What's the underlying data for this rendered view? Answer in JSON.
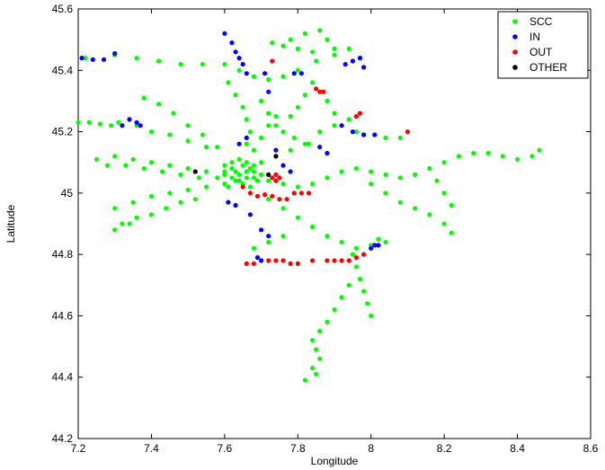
{
  "chart_data": {
    "type": "scatter",
    "xlabel": "Longitude",
    "ylabel": "Latitude",
    "xlim": [
      7.2,
      8.6
    ],
    "ylim": [
      44.2,
      45.6
    ],
    "xticks": [
      "7.2",
      "7.4",
      "7.6",
      "7.8",
      "8",
      "8.2",
      "8.4",
      "8.6"
    ],
    "yticks": [
      "44.2",
      "44.4",
      "44.6",
      "44.8",
      "45",
      "45.2",
      "45.4",
      "45.6"
    ],
    "grid": false,
    "legend_position": "top-right",
    "series": [
      {
        "name": "SCC",
        "color": "#00ff00",
        "points": [
          [
            7.2,
            45.23
          ],
          [
            7.23,
            45.23
          ],
          [
            7.26,
            45.225
          ],
          [
            7.29,
            45.22
          ],
          [
            7.31,
            45.23
          ],
          [
            7.22,
            45.44
          ],
          [
            7.3,
            45.45
          ],
          [
            7.36,
            45.44
          ],
          [
            7.42,
            45.43
          ],
          [
            7.48,
            45.42
          ],
          [
            7.54,
            45.42
          ],
          [
            7.6,
            45.42
          ],
          [
            7.64,
            45.4
          ],
          [
            7.68,
            45.38
          ],
          [
            7.72,
            45.37
          ],
          [
            7.76,
            45.38
          ],
          [
            7.8,
            45.4
          ],
          [
            7.85,
            45.43
          ],
          [
            7.9,
            45.45
          ],
          [
            7.94,
            45.47
          ],
          [
            7.97,
            45.44
          ],
          [
            7.73,
            45.49
          ],
          [
            7.78,
            45.5
          ],
          [
            7.82,
            45.52
          ],
          [
            7.86,
            45.53
          ],
          [
            7.88,
            45.5
          ],
          [
            7.9,
            45.47
          ],
          [
            7.76,
            45.48
          ],
          [
            7.8,
            45.47
          ],
          [
            7.84,
            45.46
          ],
          [
            7.61,
            45.36
          ],
          [
            7.63,
            45.32
          ],
          [
            7.65,
            45.28
          ],
          [
            7.66,
            45.24
          ],
          [
            7.67,
            45.2
          ],
          [
            7.66,
            45.16
          ],
          [
            7.7,
            45.3
          ],
          [
            7.72,
            45.26
          ],
          [
            7.74,
            45.22
          ],
          [
            7.76,
            45.2
          ],
          [
            7.79,
            45.18
          ],
          [
            7.83,
            45.16
          ],
          [
            7.86,
            45.2
          ],
          [
            7.9,
            45.22
          ],
          [
            7.94,
            45.24
          ],
          [
            7.96,
            45.2
          ],
          [
            7.98,
            45.19
          ],
          [
            8.04,
            45.18
          ],
          [
            8.08,
            45.18
          ],
          [
            7.82,
            45.32
          ],
          [
            7.8,
            45.28
          ],
          [
            7.78,
            45.25
          ],
          [
            7.84,
            45.36
          ],
          [
            7.88,
            45.3
          ],
          [
            7.9,
            45.26
          ],
          [
            7.38,
            45.31
          ],
          [
            7.42,
            45.29
          ],
          [
            7.46,
            45.26
          ],
          [
            7.5,
            45.22
          ],
          [
            7.54,
            45.19
          ],
          [
            7.58,
            45.15
          ],
          [
            7.36,
            45.22
          ],
          [
            7.4,
            45.2
          ],
          [
            7.45,
            45.19
          ],
          [
            7.5,
            45.17
          ],
          [
            7.55,
            45.15
          ],
          [
            7.25,
            45.11
          ],
          [
            7.3,
            45.12
          ],
          [
            7.35,
            45.11
          ],
          [
            7.4,
            45.1
          ],
          [
            7.45,
            45.09
          ],
          [
            7.5,
            45.08
          ],
          [
            7.55,
            45.07
          ],
          [
            7.6,
            45.06
          ],
          [
            7.28,
            45.09
          ],
          [
            7.33,
            45.09
          ],
          [
            7.38,
            45.08
          ],
          [
            7.43,
            45.07
          ],
          [
            7.48,
            45.06
          ],
          [
            7.53,
            45.05
          ],
          [
            7.3,
            44.95
          ],
          [
            7.35,
            44.97
          ],
          [
            7.4,
            44.99
          ],
          [
            7.45,
            45.0
          ],
          [
            7.5,
            45.01
          ],
          [
            7.55,
            45.02
          ],
          [
            7.6,
            45.03
          ],
          [
            7.32,
            44.9
          ],
          [
            7.36,
            44.92
          ],
          [
            7.4,
            44.93
          ],
          [
            7.44,
            44.95
          ],
          [
            7.48,
            44.97
          ],
          [
            7.52,
            44.98
          ],
          [
            7.3,
            44.88
          ],
          [
            7.34,
            44.9
          ],
          [
            7.58,
            45.05
          ],
          [
            7.6,
            45.07
          ],
          [
            7.62,
            45.08
          ],
          [
            7.64,
            45.06
          ],
          [
            7.66,
            45.05
          ],
          [
            7.68,
            45.07
          ],
          [
            7.61,
            45.02
          ],
          [
            7.63,
            45.04
          ],
          [
            7.65,
            45.03
          ],
          [
            7.67,
            45.02
          ],
          [
            7.69,
            45.04
          ],
          [
            7.62,
            45.1
          ],
          [
            7.64,
            45.11
          ],
          [
            7.66,
            45.1
          ],
          [
            7.68,
            45.09
          ],
          [
            7.7,
            45.06
          ],
          [
            7.6,
            45.09
          ],
          [
            7.63,
            45.07
          ],
          [
            7.65,
            45.09
          ],
          [
            7.67,
            45.08
          ],
          [
            7.64,
            45.04
          ],
          [
            7.66,
            45.07
          ],
          [
            7.62,
            45.05
          ],
          [
            7.68,
            45.05
          ],
          [
            7.7,
            45.1
          ],
          [
            7.74,
            45.12
          ],
          [
            7.78,
            45.14
          ],
          [
            7.82,
            45.16
          ],
          [
            7.72,
            45.04
          ],
          [
            7.76,
            45.03
          ],
          [
            7.8,
            45.02
          ],
          [
            7.84,
            45.03
          ],
          [
            7.88,
            45.05
          ],
          [
            7.92,
            45.07
          ],
          [
            7.96,
            45.08
          ],
          [
            8.0,
            45.07
          ],
          [
            8.04,
            45.06
          ],
          [
            8.08,
            45.05
          ],
          [
            8.12,
            45.06
          ],
          [
            8.16,
            45.08
          ],
          [
            8.2,
            45.1
          ],
          [
            8.24,
            45.12
          ],
          [
            8.28,
            45.13
          ],
          [
            8.32,
            45.13
          ],
          [
            8.36,
            45.12
          ],
          [
            8.4,
            45.11
          ],
          [
            8.44,
            45.12
          ],
          [
            8.46,
            45.14
          ],
          [
            8.0,
            45.03
          ],
          [
            8.04,
            45.0
          ],
          [
            8.08,
            44.97
          ],
          [
            8.12,
            44.95
          ],
          [
            8.16,
            44.93
          ],
          [
            8.2,
            44.9
          ],
          [
            8.22,
            44.87
          ],
          [
            8.18,
            45.04
          ],
          [
            8.2,
            45.0
          ],
          [
            8.22,
            44.96
          ],
          [
            7.72,
            44.98
          ],
          [
            7.76,
            44.95
          ],
          [
            7.8,
            44.92
          ],
          [
            7.84,
            44.89
          ],
          [
            7.88,
            44.86
          ],
          [
            7.92,
            44.84
          ],
          [
            7.96,
            44.82
          ],
          [
            8.0,
            44.83
          ],
          [
            8.02,
            44.85
          ],
          [
            8.04,
            44.84
          ],
          [
            7.95,
            44.8
          ],
          [
            7.96,
            44.76
          ],
          [
            7.97,
            44.72
          ],
          [
            7.98,
            44.68
          ],
          [
            7.99,
            44.64
          ],
          [
            8.0,
            44.6
          ],
          [
            7.94,
            44.7
          ],
          [
            7.92,
            44.66
          ],
          [
            7.9,
            44.62
          ],
          [
            7.88,
            44.58
          ],
          [
            7.86,
            44.55
          ],
          [
            7.84,
            44.52
          ],
          [
            7.85,
            44.49
          ],
          [
            7.86,
            44.46
          ],
          [
            7.84,
            44.43
          ],
          [
            7.85,
            44.41
          ],
          [
            7.82,
            44.39
          ],
          [
            7.68,
            44.82
          ],
          [
            7.72,
            44.84
          ],
          [
            7.76,
            44.86
          ],
          [
            7.74,
            45.25
          ],
          [
            7.72,
            45.22
          ],
          [
            7.7,
            45.18
          ],
          [
            7.68,
            45.14
          ]
        ]
      },
      {
        "name": "IN",
        "color": "#0000ff",
        "points": [
          [
            7.21,
            45.44
          ],
          [
            7.24,
            45.435
          ],
          [
            7.27,
            45.435
          ],
          [
            7.3,
            45.455
          ],
          [
            7.6,
            45.52
          ],
          [
            7.62,
            45.49
          ],
          [
            7.63,
            45.46
          ],
          [
            7.64,
            45.44
          ],
          [
            7.65,
            45.42
          ],
          [
            7.66,
            45.39
          ],
          [
            7.79,
            45.39
          ],
          [
            7.81,
            45.39
          ],
          [
            7.93,
            45.42
          ],
          [
            7.95,
            45.43
          ],
          [
            7.97,
            45.44
          ],
          [
            7.98,
            45.41
          ],
          [
            7.32,
            45.22
          ],
          [
            7.34,
            45.24
          ],
          [
            7.36,
            45.23
          ],
          [
            7.37,
            45.22
          ],
          [
            7.71,
            45.39
          ],
          [
            7.72,
            45.33
          ],
          [
            7.86,
            45.15
          ],
          [
            7.88,
            45.13
          ],
          [
            7.92,
            45.22
          ],
          [
            7.95,
            45.2
          ],
          [
            7.98,
            45.19
          ],
          [
            8.01,
            45.19
          ],
          [
            7.74,
            45.14
          ],
          [
            7.76,
            45.09
          ],
          [
            7.78,
            45.07
          ],
          [
            7.64,
            45.16
          ],
          [
            7.66,
            45.18
          ],
          [
            7.67,
            44.93
          ],
          [
            7.7,
            44.88
          ],
          [
            7.72,
            44.86
          ],
          [
            7.69,
            44.79
          ],
          [
            7.7,
            44.78
          ],
          [
            7.61,
            44.97
          ],
          [
            7.63,
            44.96
          ],
          [
            8.0,
            44.82
          ],
          [
            8.01,
            44.83
          ],
          [
            8.02,
            44.83
          ]
        ]
      },
      {
        "name": "OUT",
        "color": "#ff0000",
        "points": [
          [
            7.73,
            45.43
          ],
          [
            7.85,
            45.34
          ],
          [
            7.86,
            45.33
          ],
          [
            7.87,
            45.33
          ],
          [
            7.96,
            45.25
          ],
          [
            7.97,
            45.26
          ],
          [
            8.1,
            45.2
          ],
          [
            7.74,
            45.06
          ],
          [
            7.75,
            45.05
          ],
          [
            7.73,
            45.05
          ],
          [
            7.74,
            45.04
          ],
          [
            7.65,
            45.02
          ],
          [
            7.67,
            45.0
          ],
          [
            7.69,
            44.99
          ],
          [
            7.71,
            44.995
          ],
          [
            7.73,
            44.99
          ],
          [
            7.75,
            44.98
          ],
          [
            7.77,
            44.98
          ],
          [
            7.79,
            45.0
          ],
          [
            7.81,
            45.0
          ],
          [
            7.83,
            45.0
          ],
          [
            7.66,
            44.77
          ],
          [
            7.68,
            44.77
          ],
          [
            7.72,
            44.78
          ],
          [
            7.74,
            44.78
          ],
          [
            7.76,
            44.78
          ],
          [
            7.78,
            44.77
          ],
          [
            7.8,
            44.77
          ],
          [
            7.84,
            44.78
          ],
          [
            7.88,
            44.78
          ],
          [
            7.9,
            44.78
          ],
          [
            7.92,
            44.78
          ],
          [
            7.94,
            44.78
          ],
          [
            7.96,
            44.79
          ],
          [
            7.98,
            44.8
          ]
        ]
      },
      {
        "name": "OTHER",
        "color": "#000000",
        "points": [
          [
            7.52,
            45.07
          ],
          [
            7.74,
            45.12
          ],
          [
            7.72,
            45.06
          ]
        ]
      }
    ]
  }
}
